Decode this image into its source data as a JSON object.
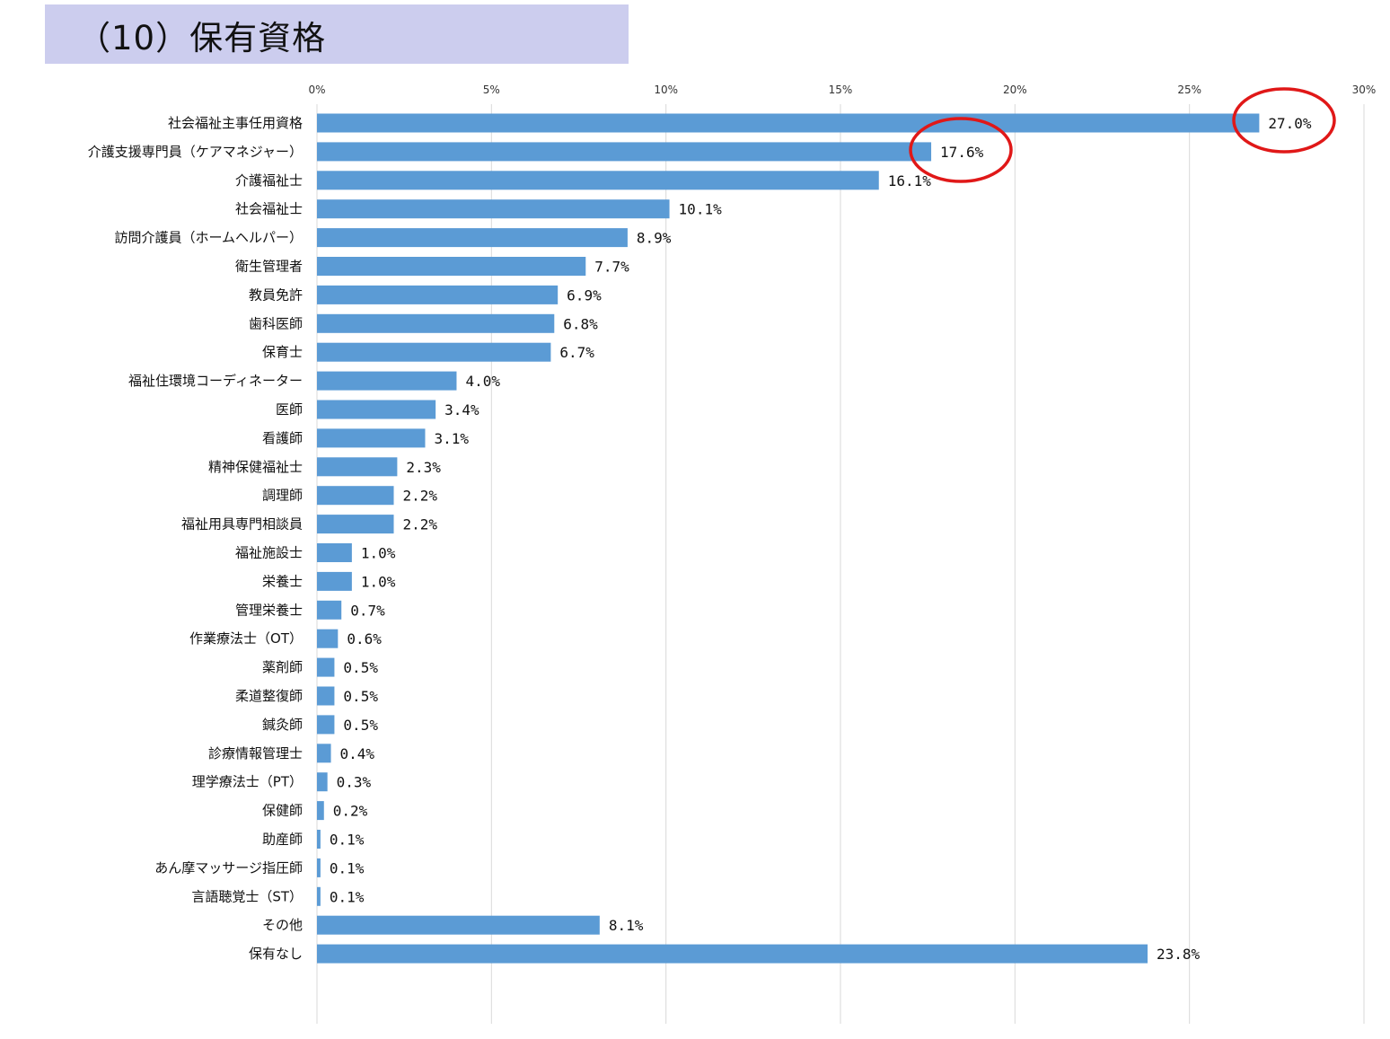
{
  "header": {
    "title": "（10）保有資格"
  },
  "annotations": {
    "highlight_color": "#e01818",
    "highlighted_labels": [
      "27.0%",
      "17.6%"
    ]
  },
  "chart_data": {
    "type": "bar",
    "orientation": "horizontal",
    "title": "",
    "xlabel": "",
    "ylabel": "",
    "xlim": [
      0,
      30
    ],
    "ticks": [
      "0%",
      "5%",
      "10%",
      "15%",
      "20%",
      "25%",
      "30%"
    ],
    "tick_values": [
      0,
      5,
      10,
      15,
      20,
      25,
      30
    ],
    "bar_color": "#5b9bd5",
    "grid": true,
    "categories": [
      "社会福祉主事任用資格",
      "介護支援専門員（ケアマネジャー）",
      "介護福祉士",
      "社会福祉士",
      "訪問介護員（ホームヘルパー）",
      "衛生管理者",
      "教員免許",
      "歯科医師",
      "保育士",
      "福祉住環境コーディネーター",
      "医師",
      "看護師",
      "精神保健福祉士",
      "調理師",
      "福祉用具専門相談員",
      "福祉施設士",
      "栄養士",
      "管理栄養士",
      "作業療法士（OT）",
      "薬剤師",
      "柔道整復師",
      "鍼灸師",
      "診療情報管理士",
      "理学療法士（PT）",
      "保健師",
      "助産師",
      "あん摩マッサージ指圧師",
      "言語聴覚士（ST）",
      "その他",
      "保有なし"
    ],
    "values": [
      27.0,
      17.6,
      16.1,
      10.1,
      8.9,
      7.7,
      6.9,
      6.8,
      6.7,
      4.0,
      3.4,
      3.1,
      2.3,
      2.2,
      2.2,
      1.0,
      1.0,
      0.7,
      0.6,
      0.5,
      0.5,
      0.5,
      0.4,
      0.3,
      0.2,
      0.1,
      0.1,
      0.1,
      8.1,
      23.8
    ],
    "data_labels": [
      "27.0%",
      "17.6%",
      "16.1%",
      "10.1%",
      "8.9%",
      "7.7%",
      "6.9%",
      "6.8%",
      "6.7%",
      "4.0%",
      "3.4%",
      "3.1%",
      "2.3%",
      "2.2%",
      "2.2%",
      "1.0%",
      "1.0%",
      "0.7%",
      "0.6%",
      "0.5%",
      "0.5%",
      "0.5%",
      "0.4%",
      "0.3%",
      "0.2%",
      "0.1%",
      "0.1%",
      "0.1%",
      "8.1%",
      "23.8%"
    ]
  }
}
